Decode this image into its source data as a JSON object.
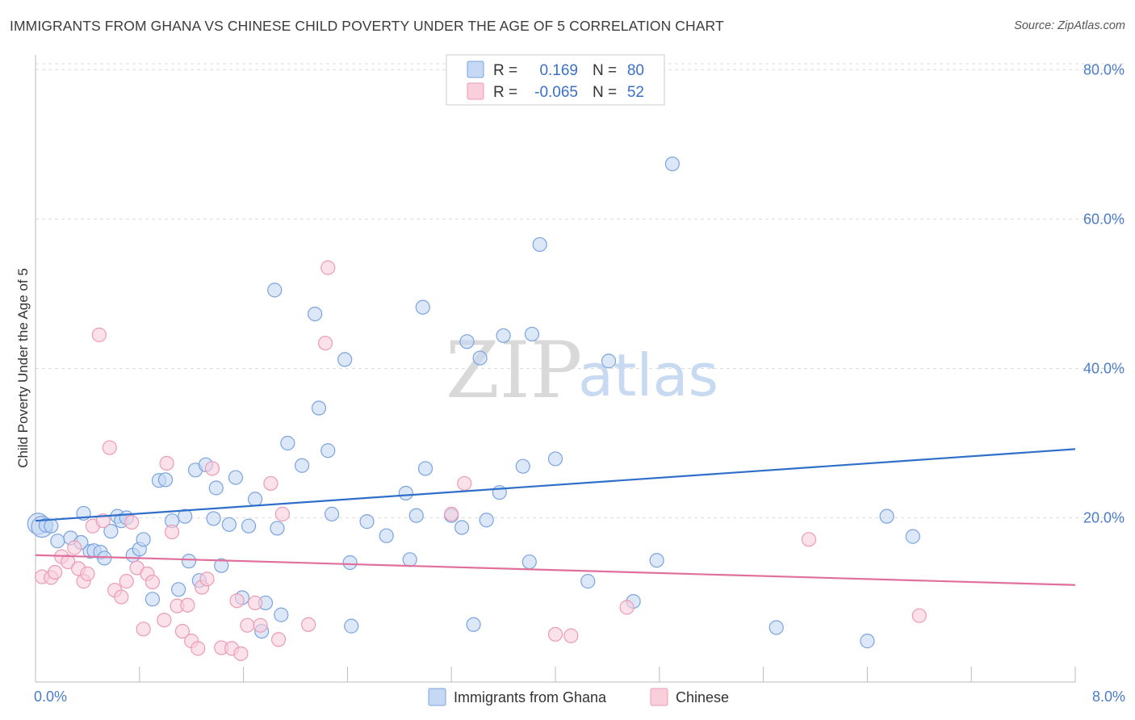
{
  "title": "IMMIGRANTS FROM GHANA VS CHINESE CHILD POVERTY UNDER THE AGE OF 5 CORRELATION CHART",
  "source": "Source: ZipAtlas.com",
  "watermark": {
    "zip": "ZIP",
    "atlas": "atlas"
  },
  "colors": {
    "blue_fill": "#c5d8f4",
    "blue_stroke": "#7aa3e0",
    "blue_line": "#2f6fc9",
    "pink_fill": "#f9cfdc",
    "pink_stroke": "#ec9ab5",
    "pink_line": "#e0709b"
  },
  "legend": {
    "r_label": "R =",
    "n_label": "N =",
    "ghana": {
      "r": "0.169",
      "n": "80"
    },
    "chinese": {
      "r": "-0.065",
      "n": "52"
    }
  },
  "chart_data": {
    "type": "scatter",
    "title": "IMMIGRANTS FROM GHANA VS CHINESE CHILD POVERTY UNDER THE AGE OF 5 CORRELATION CHART",
    "xlabel": "",
    "ylabel": "Child Poverty Under the Age of 5",
    "xlim": [
      0,
      8
    ],
    "ylim": [
      -2,
      82
    ],
    "x_tick_labels": [
      {
        "value": 0,
        "label": "0.0%"
      },
      {
        "value": 8,
        "label": "8.0%"
      }
    ],
    "y_tick_labels": [
      {
        "value": 20,
        "label": "20.0%"
      },
      {
        "value": 40,
        "label": "40.0%"
      },
      {
        "value": 60,
        "label": "60.0%"
      },
      {
        "value": 80,
        "label": "80.0%"
      }
    ],
    "grid": true,
    "legend_position": "top-center",
    "series": [
      {
        "name": "Immigrants from Ghana",
        "color": "#7aa3e0",
        "trend": {
          "x": [
            0,
            8
          ],
          "y": [
            19.6,
            29.2
          ]
        },
        "points": [
          [
            0.02,
            19.2
          ],
          [
            0.05,
            18.8
          ],
          [
            0.08,
            19.0
          ],
          [
            0.12,
            18.9
          ],
          [
            0.17,
            16.9
          ],
          [
            0.27,
            17.3
          ],
          [
            0.35,
            16.7
          ],
          [
            0.37,
            20.6
          ],
          [
            0.42,
            15.5
          ],
          [
            0.45,
            15.6
          ],
          [
            0.5,
            15.4
          ],
          [
            0.53,
            14.6
          ],
          [
            0.58,
            18.2
          ],
          [
            0.63,
            20.2
          ],
          [
            0.66,
            19.6
          ],
          [
            0.7,
            20.0
          ],
          [
            0.75,
            15.0
          ],
          [
            0.8,
            15.8
          ],
          [
            0.83,
            17.1
          ],
          [
            0.9,
            9.1
          ],
          [
            0.95,
            25.0
          ],
          [
            1.0,
            25.1
          ],
          [
            1.05,
            19.6
          ],
          [
            1.1,
            10.4
          ],
          [
            1.15,
            20.2
          ],
          [
            1.18,
            14.2
          ],
          [
            1.23,
            26.4
          ],
          [
            1.26,
            11.6
          ],
          [
            1.31,
            27.1
          ],
          [
            1.37,
            19.9
          ],
          [
            1.39,
            24.0
          ],
          [
            1.43,
            13.6
          ],
          [
            1.49,
            19.1
          ],
          [
            1.54,
            25.4
          ],
          [
            1.59,
            9.3
          ],
          [
            1.64,
            18.9
          ],
          [
            1.69,
            22.5
          ],
          [
            1.74,
            4.8
          ],
          [
            1.77,
            8.6
          ],
          [
            1.84,
            50.5
          ],
          [
            1.86,
            18.6
          ],
          [
            1.89,
            7.0
          ],
          [
            1.94,
            30.0
          ],
          [
            2.05,
            27.0
          ],
          [
            2.15,
            47.3
          ],
          [
            2.18,
            34.7
          ],
          [
            2.25,
            29.0
          ],
          [
            2.28,
            20.5
          ],
          [
            2.38,
            41.2
          ],
          [
            2.42,
            14.0
          ],
          [
            2.43,
            5.5
          ],
          [
            2.55,
            19.5
          ],
          [
            2.7,
            17.6
          ],
          [
            2.85,
            23.3
          ],
          [
            2.88,
            14.4
          ],
          [
            2.93,
            20.3
          ],
          [
            2.98,
            48.2
          ],
          [
            3.0,
            26.6
          ],
          [
            3.2,
            20.3
          ],
          [
            3.28,
            18.7
          ],
          [
            3.32,
            43.6
          ],
          [
            3.37,
            5.7
          ],
          [
            3.42,
            41.4
          ],
          [
            3.47,
            19.7
          ],
          [
            3.57,
            23.4
          ],
          [
            3.6,
            44.4
          ],
          [
            3.75,
            26.9
          ],
          [
            3.8,
            14.1
          ],
          [
            3.82,
            44.6
          ],
          [
            3.88,
            56.6
          ],
          [
            4.0,
            27.9
          ],
          [
            4.25,
            11.5
          ],
          [
            4.41,
            41.0
          ],
          [
            4.6,
            8.8
          ],
          [
            4.78,
            14.3
          ],
          [
            4.9,
            67.4
          ],
          [
            5.7,
            5.3
          ],
          [
            6.4,
            3.5
          ],
          [
            6.55,
            20.2
          ],
          [
            6.75,
            17.5
          ]
        ]
      },
      {
        "name": "Chinese",
        "color": "#ec9ab5",
        "trend": {
          "x": [
            0,
            8
          ],
          "y": [
            15.0,
            11.0
          ]
        },
        "points": [
          [
            0.05,
            12.1
          ],
          [
            0.12,
            12.0
          ],
          [
            0.15,
            12.7
          ],
          [
            0.2,
            14.8
          ],
          [
            0.25,
            14.1
          ],
          [
            0.3,
            16.0
          ],
          [
            0.33,
            13.2
          ],
          [
            0.37,
            11.5
          ],
          [
            0.4,
            12.5
          ],
          [
            0.44,
            18.9
          ],
          [
            0.49,
            44.5
          ],
          [
            0.52,
            19.6
          ],
          [
            0.57,
            29.4
          ],
          [
            0.61,
            10.3
          ],
          [
            0.66,
            9.4
          ],
          [
            0.7,
            11.5
          ],
          [
            0.74,
            19.4
          ],
          [
            0.78,
            13.3
          ],
          [
            0.83,
            5.1
          ],
          [
            0.86,
            12.5
          ],
          [
            0.9,
            11.4
          ],
          [
            0.99,
            6.3
          ],
          [
            1.01,
            27.3
          ],
          [
            1.05,
            18.1
          ],
          [
            1.09,
            8.2
          ],
          [
            1.13,
            4.8
          ],
          [
            1.17,
            8.3
          ],
          [
            1.2,
            3.5
          ],
          [
            1.25,
            2.5
          ],
          [
            1.28,
            10.7
          ],
          [
            1.32,
            11.8
          ],
          [
            1.36,
            26.6
          ],
          [
            1.43,
            2.6
          ],
          [
            1.51,
            2.5
          ],
          [
            1.55,
            8.9
          ],
          [
            1.58,
            1.8
          ],
          [
            1.63,
            5.6
          ],
          [
            1.69,
            8.6
          ],
          [
            1.73,
            5.6
          ],
          [
            1.81,
            24.6
          ],
          [
            1.87,
            3.7
          ],
          [
            1.9,
            20.5
          ],
          [
            2.1,
            5.7
          ],
          [
            2.23,
            43.4
          ],
          [
            2.25,
            53.5
          ],
          [
            3.2,
            20.5
          ],
          [
            3.3,
            24.6
          ],
          [
            4.0,
            4.4
          ],
          [
            4.12,
            4.2
          ],
          [
            4.55,
            8.0
          ],
          [
            5.95,
            17.1
          ],
          [
            6.8,
            6.9
          ]
        ]
      }
    ]
  }
}
